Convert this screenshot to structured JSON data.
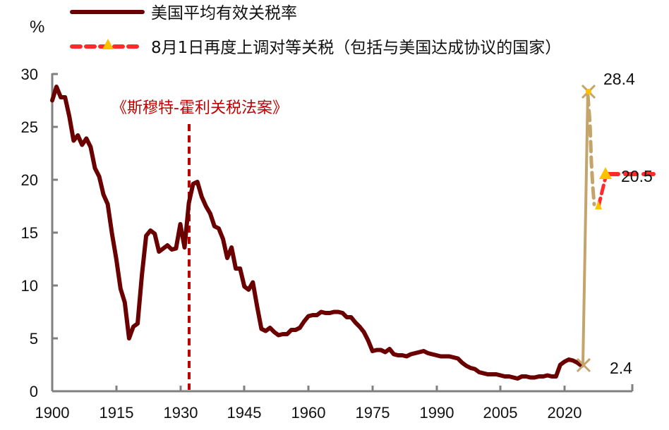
{
  "chart_data": {
    "type": "line",
    "title": "",
    "xlabel": "",
    "ylabel": "%",
    "ylim": [
      0,
      30
    ],
    "xlim": [
      1900,
      2030
    ],
    "yticks": [
      0,
      5,
      10,
      15,
      20,
      25,
      30
    ],
    "xticks": [
      1900,
      1915,
      1930,
      1945,
      1960,
      1975,
      1990,
      2005,
      2020
    ],
    "grid": false,
    "legend_position": "top",
    "series": [
      {
        "name": "美国平均有效关税率",
        "style": "solid",
        "color": "#6b0000",
        "x": [
          1900,
          1901,
          1902,
          1903,
          1904,
          1905,
          1906,
          1907,
          1908,
          1909,
          1910,
          1911,
          1912,
          1913,
          1914,
          1915,
          1916,
          1917,
          1918,
          1919,
          1920,
          1921,
          1922,
          1923,
          1924,
          1925,
          1926,
          1927,
          1928,
          1929,
          1930,
          1931,
          1932,
          1933,
          1934,
          1935,
          1936,
          1937,
          1938,
          1939,
          1940,
          1941,
          1942,
          1943,
          1944,
          1945,
          1946,
          1947,
          1948,
          1949,
          1950,
          1951,
          1952,
          1953,
          1954,
          1955,
          1956,
          1957,
          1958,
          1959,
          1960,
          1961,
          1962,
          1963,
          1964,
          1965,
          1966,
          1967,
          1968,
          1969,
          1970,
          1971,
          1972,
          1973,
          1974,
          1975,
          1976,
          1977,
          1978,
          1979,
          1980,
          1981,
          1982,
          1983,
          1984,
          1985,
          1986,
          1987,
          1988,
          1989,
          1990,
          1991,
          1992,
          1993,
          1994,
          1995,
          1996,
          1997,
          1998,
          1999,
          2000,
          2001,
          2002,
          2003,
          2004,
          2005,
          2006,
          2007,
          2008,
          2009,
          2010,
          2011,
          2012,
          2013,
          2014,
          2015,
          2016,
          2017,
          2018,
          2019,
          2020,
          2021,
          2022,
          2023,
          2024
        ],
        "values": [
          27.5,
          28.8,
          27.8,
          27.8,
          26.0,
          23.7,
          24.2,
          23.3,
          23.9,
          23.1,
          21.1,
          20.3,
          18.6,
          17.7,
          14.9,
          12.5,
          9.7,
          8.4,
          5.0,
          6.1,
          6.4,
          11.0,
          14.7,
          15.2,
          14.9,
          13.2,
          13.5,
          13.8,
          13.4,
          13.5,
          15.8,
          13.6,
          17.8,
          19.6,
          19.8,
          18.4,
          17.5,
          16.8,
          15.6,
          15.4,
          14.4,
          12.6,
          13.6,
          11.6,
          11.6,
          9.9,
          9.6,
          10.3,
          8.0,
          5.9,
          5.7,
          6.0,
          5.6,
          5.3,
          5.4,
          5.4,
          5.8,
          5.8,
          6.0,
          6.6,
          7.1,
          7.2,
          7.2,
          7.5,
          7.4,
          7.4,
          7.5,
          7.5,
          7.4,
          7.0,
          7.0,
          6.5,
          6.1,
          5.6,
          4.8,
          3.8,
          3.9,
          3.9,
          3.7,
          4.0,
          3.5,
          3.4,
          3.4,
          3.3,
          3.5,
          3.6,
          3.7,
          3.8,
          3.6,
          3.5,
          3.4,
          3.3,
          3.3,
          3.3,
          3.2,
          3.1,
          2.7,
          2.4,
          2.2,
          2.1,
          1.8,
          1.7,
          1.6,
          1.6,
          1.6,
          1.5,
          1.4,
          1.4,
          1.3,
          1.2,
          1.4,
          1.4,
          1.3,
          1.3,
          1.4,
          1.4,
          1.5,
          1.4,
          1.4,
          2.5,
          2.8,
          3.0,
          2.9,
          2.7,
          2.4
        ]
      },
      {
        "name": "8月1日再度上调对等关税（包括与美国达成协议的国家）",
        "style": "dashed",
        "color": "#ff2a2a",
        "marker": "triangle",
        "marker_color": "#ffc000",
        "x": [
          2026.5,
          2028.5,
          2033
        ],
        "values": [
          17.3,
          20.5,
          20.5
        ]
      },
      {
        "name": "tariff-path-2025",
        "style": "solid",
        "color": "#c4a46a",
        "marker": "x",
        "x": [
          2025,
          2025.3
        ],
        "values": [
          2.4,
          28.4
        ]
      },
      {
        "name": "tariff-path-2025-dashed",
        "style": "dashed",
        "color": "#c4a46a",
        "x": [
          2025.3,
          2026.5,
          2027.5
        ],
        "values": [
          28.4,
          22.0,
          18.0
        ]
      }
    ],
    "annotations": [
      {
        "text": "《斯穆特-霍利关税法案》",
        "x": 1930,
        "type": "vertical-dashed-line",
        "color": "#c00000"
      },
      {
        "text": "28.4",
        "x": 2025,
        "y": 28.4
      },
      {
        "text": "20.5",
        "x": 2033,
        "y": 20.5
      },
      {
        "text": "2.4",
        "x": 2025,
        "y": 2.4
      }
    ]
  },
  "axis": {
    "unit": "%",
    "y_labels": [
      "0",
      "5",
      "10",
      "15",
      "20",
      "25",
      "30"
    ],
    "x_labels": [
      "1900",
      "1915",
      "1930",
      "1945",
      "1960",
      "1975",
      "1990",
      "2005",
      "2020"
    ]
  },
  "legend": {
    "items": [
      {
        "label": "美国平均有效关税率"
      },
      {
        "label": "8月1日再度上调对等关税（包括与美国达成协议的国家）"
      }
    ]
  },
  "annotations": {
    "smoot_hawley": "《斯穆特-霍利关税法案》",
    "peak_label": "28.4",
    "current_label": "20.5",
    "start_label": "2.4"
  }
}
